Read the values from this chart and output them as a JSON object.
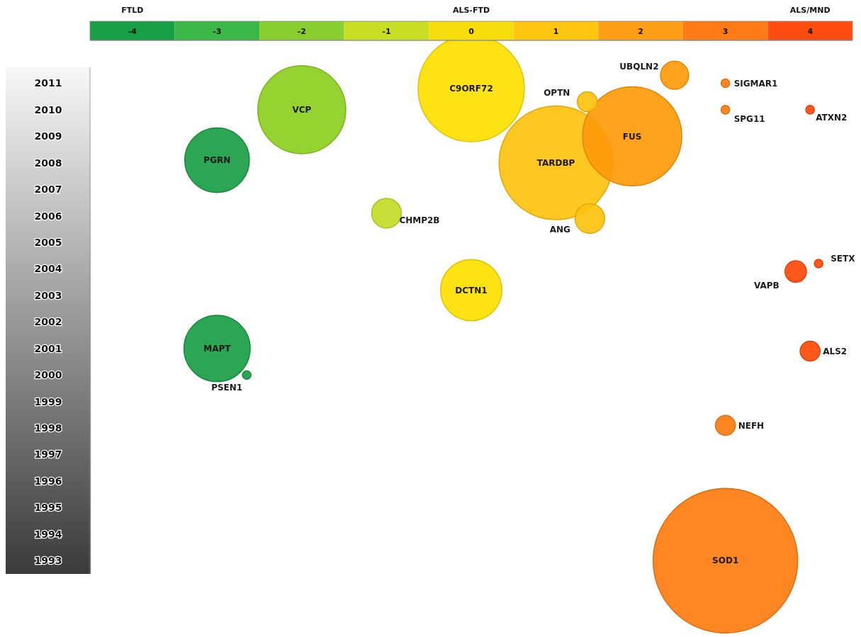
{
  "chart_data": {
    "type": "bubble",
    "annotations": [
      "FTLD",
      "ALS-FTD",
      "ALS/MND"
    ],
    "xlim": [
      -4.5,
      4.5
    ],
    "xticks": [
      -4,
      -3,
      -2,
      -1,
      0,
      1,
      2,
      3,
      4
    ],
    "ylim": [
      1992.5,
      2011.6
    ],
    "yticks": [
      1993,
      1994,
      1995,
      1996,
      1997,
      1998,
      1999,
      2000,
      2001,
      2002,
      2003,
      2004,
      2005,
      2006,
      2007,
      2008,
      2009,
      2010,
      2011
    ],
    "series": [
      {
        "name": "PGRN",
        "color": "#1a9e45",
        "x": [
          -3
        ],
        "values": [
          2008.1
        ],
        "sizes": [
          0.2
        ]
      },
      {
        "name": "VCP",
        "color": "#8ccf1e",
        "x": [
          -2
        ],
        "values": [
          2010
        ],
        "sizes": [
          0.37
        ]
      },
      {
        "name": "C9ORF72",
        "color": "#ffe000",
        "x": [
          0
        ],
        "values": [
          2010.8
        ],
        "sizes": [
          0.54
        ]
      },
      {
        "name": "TARDBP",
        "color": "#ffc20e",
        "x": [
          1
        ],
        "values": [
          2008
        ],
        "sizes": [
          0.62
        ]
      },
      {
        "name": "FUS",
        "color": "#ff9a0a",
        "x": [
          1.9
        ],
        "values": [
          2009
        ],
        "sizes": [
          0.47
        ]
      },
      {
        "name": "OPTN",
        "color": "#ffc20e",
        "x": [
          1.37
        ],
        "values": [
          2010.3
        ],
        "sizes": [
          0.019
        ]
      },
      {
        "name": "UBQLN2",
        "color": "#ff9a0a",
        "x": [
          2.4
        ],
        "values": [
          2011.3
        ],
        "sizes": [
          0.038
        ]
      },
      {
        "name": "ANG",
        "color": "#ffc20e",
        "x": [
          1.4
        ],
        "values": [
          2005.9
        ],
        "sizes": [
          0.042
        ]
      },
      {
        "name": "CHMP2B",
        "color": "#c4dc28",
        "x": [
          -1
        ],
        "values": [
          2006.1
        ],
        "sizes": [
          0.042
        ]
      },
      {
        "name": "DCTN1",
        "color": "#ffe000",
        "x": [
          0
        ],
        "values": [
          2003.2
        ],
        "sizes": [
          0.18
        ]
      },
      {
        "name": "MAPT",
        "color": "#1a9e45",
        "x": [
          -3
        ],
        "values": [
          2001
        ],
        "sizes": [
          0.21
        ]
      },
      {
        "name": "PSEN1",
        "color": "#1a9e45",
        "x": [
          -2.65
        ],
        "values": [
          2000
        ],
        "sizes": [
          0.0035
        ]
      },
      {
        "name": "SIGMAR1",
        "color": "#ff7d10",
        "x": [
          3
        ],
        "values": [
          2011
        ],
        "sizes": [
          0.0035
        ]
      },
      {
        "name": "SPG11",
        "color": "#ff7d10",
        "x": [
          3
        ],
        "values": [
          2010
        ],
        "sizes": [
          0.0035
        ]
      },
      {
        "name": "ATXN2",
        "color": "#ff4a0a",
        "x": [
          4
        ],
        "values": [
          2010
        ],
        "sizes": [
          0.0035
        ]
      },
      {
        "name": "SETX",
        "color": "#ff4a0a",
        "x": [
          4.1
        ],
        "values": [
          2004.2
        ],
        "sizes": [
          0.0035
        ]
      },
      {
        "name": "VAPB",
        "color": "#ff4a0a",
        "x": [
          3.83
        ],
        "values": [
          2003.9
        ],
        "sizes": [
          0.022
        ]
      },
      {
        "name": "ALS2",
        "color": "#ff4a0a",
        "x": [
          4
        ],
        "values": [
          2000.9
        ],
        "sizes": [
          0.019
        ]
      },
      {
        "name": "NEFH",
        "color": "#ff7d10",
        "x": [
          3
        ],
        "values": [
          1998.1
        ],
        "sizes": [
          0.019
        ]
      },
      {
        "name": "SOD1",
        "color": "#ff7d10",
        "x": [
          3
        ],
        "values": [
          1993
        ],
        "sizes": [
          1
        ]
      }
    ]
  }
}
